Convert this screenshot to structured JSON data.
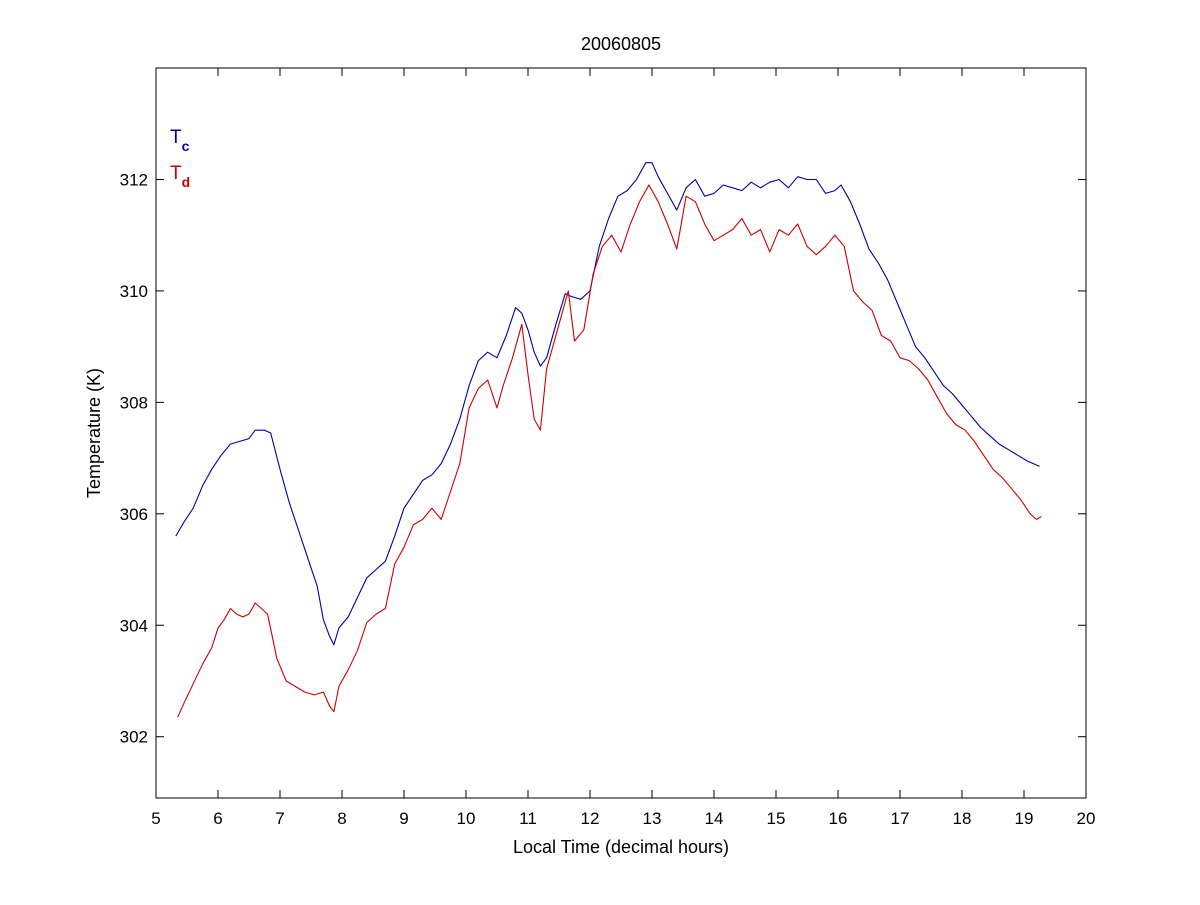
{
  "chart_data": {
    "type": "line",
    "title": "20060805",
    "xlabel": "Local Time (decimal hours)",
    "ylabel": "Temperature (K)",
    "xlim": [
      5,
      20
    ],
    "ylim": [
      300.9,
      314
    ],
    "xticks": [
      5,
      6,
      7,
      8,
      9,
      10,
      11,
      12,
      13,
      14,
      15,
      16,
      17,
      18,
      19,
      20
    ],
    "yticks": [
      302,
      304,
      306,
      308,
      310,
      312
    ],
    "grid": false,
    "legend": {
      "placement": "top-left"
    },
    "series": [
      {
        "name": "T",
        "subscript": "c",
        "color": "#0000a8",
        "x": [
          5.32,
          5.45,
          5.6,
          5.75,
          5.9,
          6.05,
          6.2,
          6.35,
          6.5,
          6.6,
          6.75,
          6.85,
          7.0,
          7.15,
          7.3,
          7.45,
          7.6,
          7.7,
          7.8,
          7.87,
          7.95,
          8.1,
          8.25,
          8.4,
          8.55,
          8.7,
          8.85,
          9.0,
          9.15,
          9.3,
          9.45,
          9.6,
          9.75,
          9.9,
          10.05,
          10.2,
          10.35,
          10.5,
          10.65,
          10.8,
          10.9,
          11.0,
          11.1,
          11.2,
          11.3,
          11.45,
          11.6,
          11.7,
          11.85,
          12.0,
          12.15,
          12.3,
          12.45,
          12.6,
          12.75,
          12.9,
          13.0,
          13.1,
          13.25,
          13.4,
          13.55,
          13.7,
          13.85,
          14.0,
          14.15,
          14.3,
          14.45,
          14.6,
          14.75,
          14.9,
          15.05,
          15.2,
          15.35,
          15.5,
          15.65,
          15.8,
          15.95,
          16.05,
          16.2,
          16.35,
          16.5,
          16.65,
          16.8,
          16.95,
          17.1,
          17.25,
          17.4,
          17.55,
          17.7,
          17.85,
          18.0,
          18.15,
          18.3,
          18.45,
          18.6,
          18.75,
          18.9,
          19.05,
          19.15,
          19.25
        ],
        "values": [
          305.6,
          305.85,
          306.1,
          306.5,
          306.8,
          307.05,
          307.25,
          307.3,
          307.35,
          307.5,
          307.5,
          307.45,
          306.8,
          306.2,
          305.7,
          305.2,
          304.7,
          304.1,
          303.8,
          303.65,
          303.95,
          304.15,
          304.5,
          304.85,
          305.0,
          305.15,
          305.6,
          306.1,
          306.35,
          306.6,
          306.7,
          306.9,
          307.25,
          307.7,
          308.3,
          308.75,
          308.9,
          308.8,
          309.2,
          309.7,
          309.6,
          309.3,
          308.9,
          308.65,
          308.8,
          309.4,
          309.95,
          309.9,
          309.85,
          310.0,
          310.8,
          311.3,
          311.7,
          311.8,
          312.0,
          312.3,
          312.3,
          312.05,
          311.75,
          311.45,
          311.85,
          312.0,
          311.7,
          311.75,
          311.9,
          311.85,
          311.8,
          311.95,
          311.85,
          311.95,
          312.0,
          311.85,
          312.05,
          312.0,
          312.0,
          311.75,
          311.8,
          311.9,
          311.6,
          311.2,
          310.75,
          310.5,
          310.2,
          309.8,
          309.4,
          309.0,
          308.8,
          308.55,
          308.3,
          308.15,
          307.95,
          307.75,
          307.55,
          307.4,
          307.25,
          307.15,
          307.05,
          306.95,
          306.9,
          306.85
        ]
      },
      {
        "name": "T",
        "subscript": "d",
        "color": "#cc0000",
        "x": [
          5.35,
          5.45,
          5.6,
          5.75,
          5.9,
          6.0,
          6.1,
          6.2,
          6.3,
          6.4,
          6.5,
          6.6,
          6.7,
          6.8,
          6.95,
          7.1,
          7.25,
          7.4,
          7.55,
          7.7,
          7.8,
          7.87,
          7.95,
          8.1,
          8.25,
          8.4,
          8.55,
          8.7,
          8.85,
          9.0,
          9.15,
          9.3,
          9.45,
          9.6,
          9.75,
          9.9,
          10.05,
          10.2,
          10.35,
          10.5,
          10.6,
          10.75,
          10.9,
          11.0,
          11.1,
          11.2,
          11.3,
          11.4,
          11.55,
          11.65,
          11.75,
          11.9,
          12.05,
          12.2,
          12.35,
          12.5,
          12.65,
          12.8,
          12.95,
          13.1,
          13.25,
          13.4,
          13.55,
          13.7,
          13.85,
          14.0,
          14.15,
          14.3,
          14.45,
          14.6,
          14.75,
          14.9,
          15.05,
          15.2,
          15.35,
          15.5,
          15.65,
          15.8,
          15.95,
          16.1,
          16.25,
          16.4,
          16.55,
          16.7,
          16.85,
          17.0,
          17.15,
          17.3,
          17.45,
          17.6,
          17.75,
          17.9,
          18.05,
          18.2,
          18.35,
          18.5,
          18.65,
          18.8,
          18.95,
          19.1,
          19.2,
          19.28
        ],
        "values": [
          302.35,
          302.6,
          302.95,
          303.3,
          303.6,
          303.95,
          304.1,
          304.3,
          304.2,
          304.15,
          304.2,
          304.4,
          304.3,
          304.2,
          303.4,
          303.0,
          302.9,
          302.8,
          302.75,
          302.8,
          302.55,
          302.45,
          302.9,
          303.2,
          303.55,
          304.05,
          304.2,
          304.3,
          305.1,
          305.4,
          305.8,
          305.9,
          306.1,
          305.9,
          306.4,
          306.9,
          307.9,
          308.25,
          308.4,
          307.9,
          308.3,
          308.8,
          309.4,
          308.5,
          307.7,
          307.5,
          308.6,
          309.0,
          309.6,
          310.0,
          309.1,
          309.3,
          310.3,
          310.8,
          311.0,
          310.7,
          311.2,
          311.6,
          311.9,
          311.6,
          311.2,
          310.75,
          311.7,
          311.6,
          311.2,
          310.9,
          311.0,
          311.1,
          311.3,
          311.0,
          311.1,
          310.7,
          311.1,
          311.0,
          311.2,
          310.8,
          310.65,
          310.8,
          311.0,
          310.8,
          310.0,
          309.8,
          309.65,
          309.2,
          309.1,
          308.8,
          308.75,
          308.6,
          308.4,
          308.1,
          307.8,
          307.6,
          307.5,
          307.3,
          307.05,
          306.8,
          306.65,
          306.45,
          306.25,
          306.0,
          305.9,
          305.95
        ]
      }
    ]
  }
}
